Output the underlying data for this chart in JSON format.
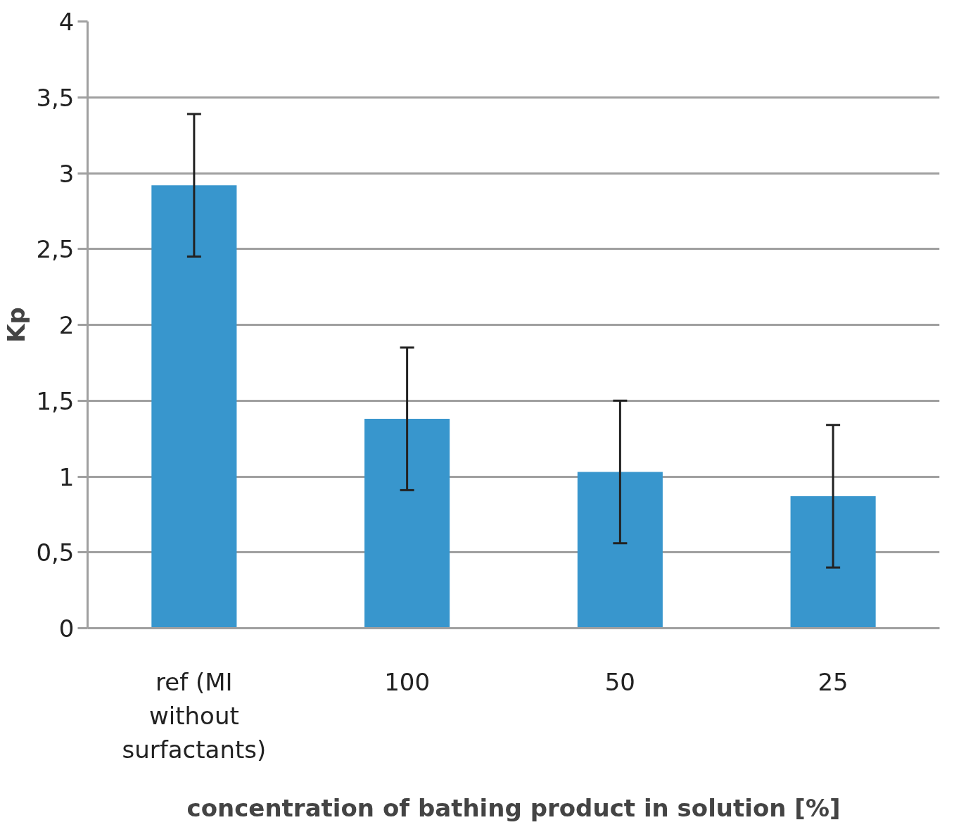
{
  "chart_data": {
    "type": "bar",
    "xlabel": "concentration of bathing product in solution [%]",
    "ylabel": "Kp",
    "categories": [
      "ref (MI\nwithout\nsurfactants)",
      "100",
      "50",
      "25"
    ],
    "values": [
      2.92,
      1.38,
      1.03,
      0.87
    ],
    "errors": [
      0.47,
      0.47,
      0.47,
      0.47
    ],
    "color": "#3896cd",
    "ylim": [
      0,
      4
    ],
    "yticks": [
      0,
      {
        "value": 0.5,
        "label": "0,5"
      },
      1,
      {
        "value": 1.5,
        "label": "1,5"
      },
      2,
      {
        "value": 2.5,
        "label": "2,5"
      },
      3,
      {
        "value": 3.5,
        "label": "3,5"
      },
      4
    ],
    "grid": "y"
  }
}
